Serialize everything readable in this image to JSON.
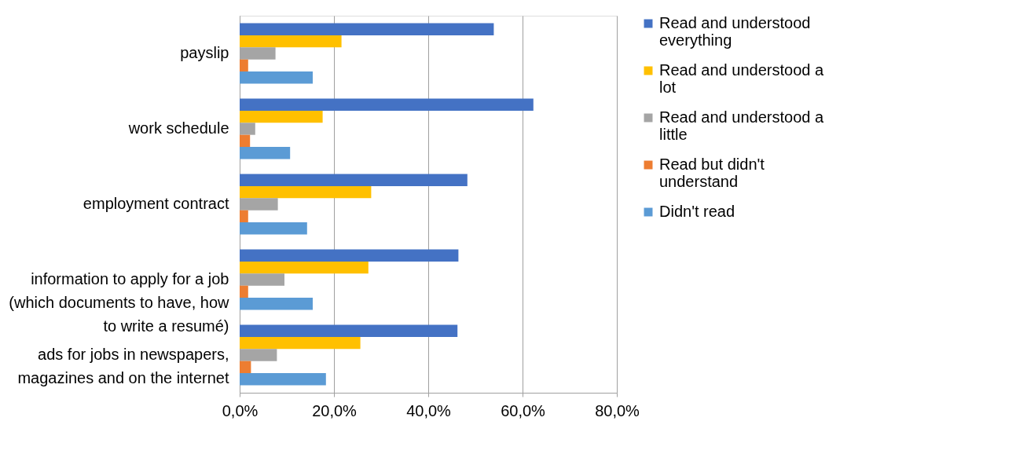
{
  "chart_data": {
    "type": "bar",
    "orientation": "horizontal",
    "categories": [
      "payslip",
      "work schedule",
      "employment contract",
      "information to apply for a job (which documents to have, how to write a resumé)",
      "ads for jobs in newspapers, magazines and on the internet"
    ],
    "series": [
      {
        "name": "Read and understood everything",
        "color": "#4472c4",
        "values": [
          53.9,
          62.3,
          48.3,
          46.4,
          46.2
        ]
      },
      {
        "name": "Read and understood a lot",
        "color": "#ffc000",
        "values": [
          21.6,
          17.6,
          27.9,
          27.3,
          25.6
        ]
      },
      {
        "name": "Read and understood a little",
        "color": "#a5a5a5",
        "values": [
          7.6,
          3.3,
          8.1,
          9.5,
          7.9
        ]
      },
      {
        "name": "Read but didn't understand",
        "color": "#ed7d31",
        "values": [
          1.8,
          2.2,
          1.8,
          1.8,
          2.4
        ]
      },
      {
        "name": "Didn't read",
        "color": "#5b9bd5",
        "values": [
          15.5,
          10.7,
          14.3,
          15.5,
          18.3
        ]
      }
    ],
    "xlim": [
      0,
      80
    ],
    "xticks": [
      {
        "value": 0,
        "label": "0,0%"
      },
      {
        "value": 20,
        "label": "20,0%"
      },
      {
        "value": 40,
        "label": "40,0%"
      },
      {
        "value": 60,
        "label": "60,0%"
      },
      {
        "value": 80,
        "label": "80,0%"
      }
    ],
    "grid": "x",
    "legend": "right"
  }
}
